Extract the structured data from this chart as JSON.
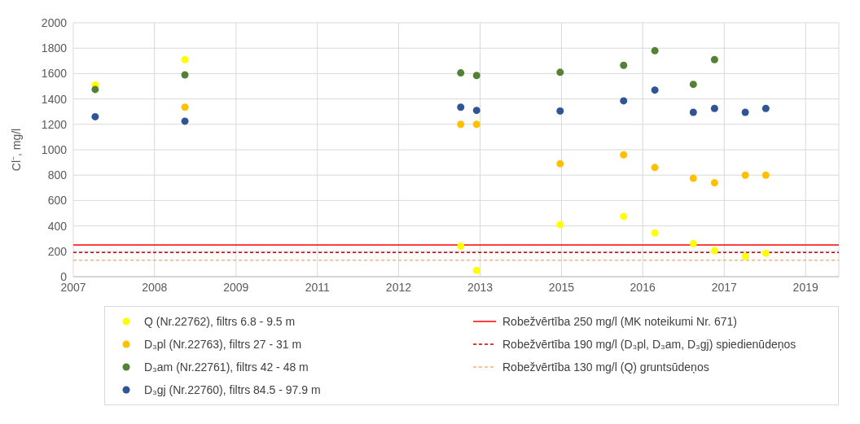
{
  "chart_data": {
    "type": "scatter",
    "ylabel": "Cl⁻, mg/l",
    "xlim": [
      "2007-01-01",
      "2019-07-19"
    ],
    "ylim": [
      0,
      2000
    ],
    "xticks": [
      {
        "value": "2007-01-01",
        "label": "2007"
      },
      {
        "value": "2008-05-01",
        "label": "2008"
      },
      {
        "value": "2009-09-01",
        "label": "2009"
      },
      {
        "value": "2011-01-01",
        "label": "2011"
      },
      {
        "value": "2012-05-01",
        "label": "2012"
      },
      {
        "value": "2013-09-01",
        "label": "2013"
      },
      {
        "value": "2015-01-01",
        "label": "2015"
      },
      {
        "value": "2016-05-01",
        "label": "2016"
      },
      {
        "value": "2017-09-01",
        "label": "2017"
      },
      {
        "value": "2019-01-01",
        "label": "2019"
      }
    ],
    "yticks": [
      0,
      200,
      400,
      600,
      800,
      1000,
      1200,
      1400,
      1600,
      1800,
      2000
    ],
    "grid": true,
    "legend": "bottom",
    "marker": "circle",
    "series": [
      {
        "name": "Q (Nr.22762), filtrs 6.8 - 9.5 m",
        "color": "#ffff00",
        "x": [
          "2007-05-12",
          "2008-10-30",
          "2013-05-08",
          "2013-08-11",
          "2014-12-24",
          "2016-01-08",
          "2016-07-13",
          "2017-02-28",
          "2017-07-05",
          "2018-01-05",
          "2018-05-08"
        ],
        "values": [
          1510,
          1710,
          240,
          50,
          410,
          475,
          345,
          260,
          205,
          160,
          185
        ]
      },
      {
        "name": "D₃pl (Nr.22763), filtrs 27 - 31 m",
        "color": "#ffc000",
        "x": [
          "2008-10-30",
          "2013-05-08",
          "2013-08-11",
          "2014-12-24",
          "2016-01-08",
          "2016-07-13",
          "2017-02-28",
          "2017-07-05",
          "2018-01-05",
          "2018-05-08"
        ],
        "values": [
          1335,
          1200,
          1200,
          890,
          960,
          860,
          775,
          740,
          800,
          800
        ]
      },
      {
        "name": "D₃am (Nr.22761), filtrs 42 - 48 m",
        "color": "#548235",
        "x": [
          "2007-05-12",
          "2008-10-30",
          "2013-05-08",
          "2013-08-11",
          "2014-12-24",
          "2016-01-08",
          "2016-07-13",
          "2017-02-28",
          "2017-07-05"
        ],
        "values": [
          1475,
          1590,
          1605,
          1585,
          1610,
          1665,
          1780,
          1515,
          1710
        ]
      },
      {
        "name": "D₃gj (Nr.22760), filtrs 84.5 - 97.9 m",
        "color": "#2f5597",
        "x": [
          "2007-05-12",
          "2008-10-30",
          "2013-05-08",
          "2013-08-11",
          "2014-12-24",
          "2016-01-08",
          "2016-07-13",
          "2017-02-28",
          "2017-07-05",
          "2018-01-05",
          "2018-05-08"
        ],
        "values": [
          1260,
          1225,
          1335,
          1310,
          1305,
          1385,
          1470,
          1295,
          1325,
          1295,
          1325
        ]
      }
    ],
    "ref_lines": [
      {
        "axis": "y",
        "value": 250,
        "label": "Robežvērtība 250 mg/l (MK noteikumi Nr. 671)",
        "color": "#ff0000",
        "line_style": "solid"
      },
      {
        "axis": "y",
        "value": 190,
        "label": "Robežvērtība 190 mg/l (D₃pl, D₃am, D₃gj) spiedienūdeņos",
        "color": "#c00000",
        "line_style": "dashed"
      },
      {
        "axis": "y",
        "value": 130,
        "label": "Robežvērtība 130 mg/l (Q) gruntsūdeņos",
        "color": "#f4b183",
        "line_style": "dashed"
      }
    ]
  }
}
